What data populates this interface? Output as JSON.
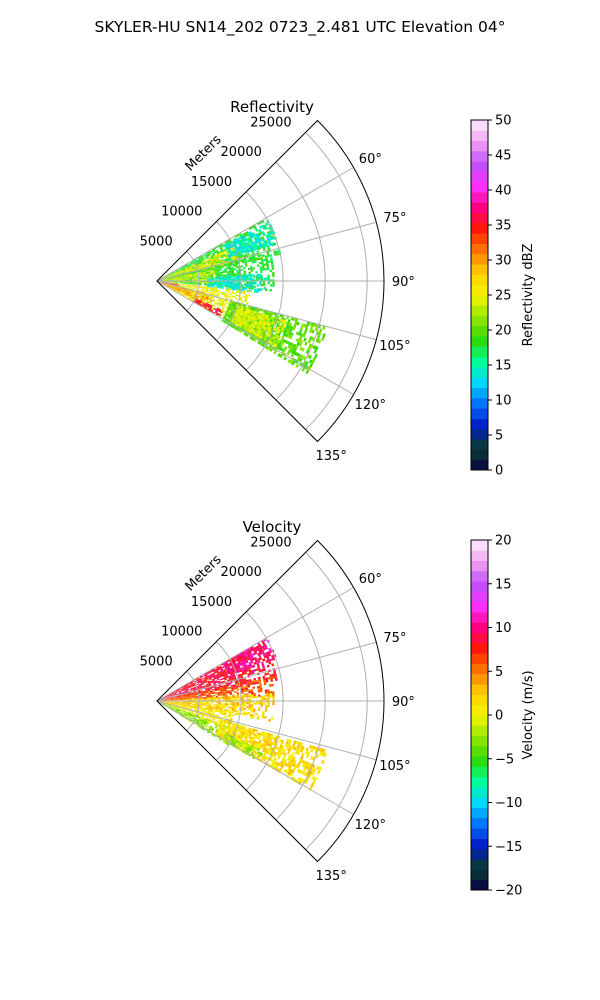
{
  "figure": {
    "suptitle": "SKYLER-HU  SN14_202  0723_2.481 UTC Elevation 04°"
  },
  "chart_data": [
    {
      "type": "polar-sector",
      "title": "Reflectivity",
      "range_axis_label": "Meters",
      "range_ticks": [
        5000,
        10000,
        15000,
        20000,
        25000
      ],
      "range_tick_labels": [
        "5000",
        "10000",
        "15000",
        "20000",
        "25000"
      ],
      "angle_ticks_deg": [
        60,
        75,
        90,
        105,
        120,
        135
      ],
      "angle_tick_labels": [
        "60°",
        "75°",
        "90°",
        "105°",
        "120°",
        "135°"
      ],
      "azimuth_range_deg": [
        45,
        135
      ],
      "range_max_m": 27000,
      "grid": true,
      "colorbar": {
        "label": "Reflectivity dBZ",
        "min": 0,
        "max": 50,
        "ticks": [
          0,
          5,
          10,
          15,
          20,
          25,
          30,
          35,
          40,
          45,
          50
        ],
        "tick_labels": [
          "0",
          "5",
          "10",
          "15",
          "20",
          "25",
          "30",
          "35",
          "40",
          "45",
          "50"
        ],
        "colormap": [
          "#08004a",
          "#0a3f2d",
          "#0018c8",
          "#0070ff",
          "#00d8ff",
          "#00ff90",
          "#30d800",
          "#98e800",
          "#f5f500",
          "#ffd000",
          "#ff7a00",
          "#ff1a00",
          "#ff0080",
          "#ff30ff",
          "#c050ff",
          "#f0a0f0",
          "#fff0ff"
        ]
      },
      "echo_regions": [
        {
          "az_start": 60,
          "az_end": 78,
          "range_start": 0,
          "range_end": 15000,
          "value": 18
        },
        {
          "az_start": 62,
          "az_end": 72,
          "range_start": 9000,
          "range_end": 15000,
          "value": 14
        },
        {
          "az_start": 66,
          "az_end": 76,
          "range_start": 0,
          "range_end": 10000,
          "value": 25
        },
        {
          "az_start": 76,
          "az_end": 95,
          "range_start": 0,
          "range_end": 14000,
          "value": 18
        },
        {
          "az_start": 86,
          "az_end": 96,
          "range_start": 6000,
          "range_end": 13000,
          "value": 14
        },
        {
          "az_start": 78,
          "az_end": 92,
          "range_start": 0,
          "range_end": 7000,
          "value": 24
        },
        {
          "az_start": 96,
          "az_end": 120,
          "range_start": 0,
          "range_end": 11000,
          "value": 25
        },
        {
          "az_start": 104,
          "az_end": 116,
          "range_start": 0,
          "range_end": 7000,
          "value": 30
        },
        {
          "az_start": 98,
          "az_end": 104,
          "range_start": 500,
          "range_end": 2500,
          "value": 37
        },
        {
          "az_start": 114,
          "az_end": 120,
          "range_start": 5000,
          "range_end": 8500,
          "value": 36
        },
        {
          "az_start": 105,
          "az_end": 121,
          "range_start": 9000,
          "range_end": 21000,
          "value": 20
        },
        {
          "az_start": 107,
          "az_end": 118,
          "range_start": 10000,
          "range_end": 16000,
          "value": 24
        }
      ]
    },
    {
      "type": "polar-sector",
      "title": "Velocity",
      "range_axis_label": "Meters",
      "range_ticks": [
        5000,
        10000,
        15000,
        20000,
        25000
      ],
      "range_tick_labels": [
        "5000",
        "10000",
        "15000",
        "20000",
        "25000"
      ],
      "angle_ticks_deg": [
        60,
        75,
        90,
        105,
        120,
        135
      ],
      "angle_tick_labels": [
        "60°",
        "75°",
        "90°",
        "105°",
        "120°",
        "135°"
      ],
      "azimuth_range_deg": [
        45,
        135
      ],
      "range_max_m": 27000,
      "grid": true,
      "colorbar": {
        "label": "Velocity (m/s)",
        "min": -20,
        "max": 20,
        "ticks": [
          -20,
          -15,
          -10,
          -5,
          0,
          5,
          10,
          15,
          20
        ],
        "tick_labels": [
          "−20",
          "−15",
          "−10",
          "−5",
          "0",
          "5",
          "10",
          "15",
          "20"
        ],
        "colormap": [
          "#08004a",
          "#0a3f2d",
          "#0018c8",
          "#0070ff",
          "#00d8ff",
          "#00ff90",
          "#30d800",
          "#98e800",
          "#f5f500",
          "#ffd000",
          "#ff7a00",
          "#ff1a00",
          "#ff0080",
          "#ff30ff",
          "#c050ff",
          "#f0a0f0",
          "#fff0ff"
        ]
      },
      "echo_regions": [
        {
          "az_start": 60,
          "az_end": 80,
          "range_start": 0,
          "range_end": 14500,
          "value": 8.5
        },
        {
          "az_start": 60,
          "az_end": 70,
          "range_start": 9000,
          "range_end": 15000,
          "value": 10
        },
        {
          "az_start": 78,
          "az_end": 87,
          "range_start": 0,
          "range_end": 14000,
          "value": 6
        },
        {
          "az_start": 86,
          "az_end": 100,
          "range_start": 0,
          "range_end": 14000,
          "value": 2
        },
        {
          "az_start": 98,
          "az_end": 112,
          "range_start": 0,
          "range_end": 9000,
          "value": 1
        },
        {
          "az_start": 110,
          "az_end": 121,
          "range_start": 0,
          "range_end": 10000,
          "value": -3
        },
        {
          "az_start": 106,
          "az_end": 120,
          "range_start": 8000,
          "range_end": 21000,
          "value": 1.5
        },
        {
          "az_start": 115,
          "az_end": 120,
          "range_start": 9000,
          "range_end": 14000,
          "value": -2
        }
      ]
    }
  ]
}
